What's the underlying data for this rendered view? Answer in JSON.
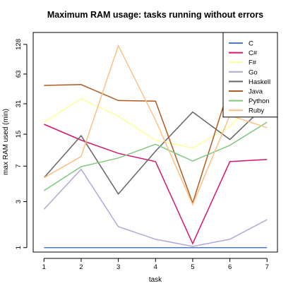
{
  "chart_data": {
    "type": "line",
    "title": "Maximum RAM usage: tasks running without errors",
    "xlabel": "task",
    "ylabel": "max RAM used (min)",
    "y_scale": "log2",
    "x": [
      1,
      2,
      3,
      4,
      5,
      6,
      7
    ],
    "x_tick_labels": [
      "1",
      "2",
      "3",
      "4",
      "5",
      "6",
      "7"
    ],
    "y_ticks": [
      1,
      3,
      7,
      15,
      31,
      63,
      128
    ],
    "y_tick_labels": [
      "1",
      "3",
      "7",
      "15",
      "31",
      "63",
      "128"
    ],
    "ylim": [
      0.9,
      170
    ],
    "legend_position": "top-right",
    "series": [
      {
        "name": "C",
        "color": "#4e7cbf",
        "values": [
          1,
          1,
          1,
          1,
          1,
          1,
          1
        ]
      },
      {
        "name": "C#",
        "color": "#d6166f",
        "values": [
          19,
          13,
          9.5,
          7.8,
          1.1,
          7.8,
          8.2
        ]
      },
      {
        "name": "F#",
        "color": "#ffff99",
        "values": [
          20,
          35,
          23,
          13,
          10.8,
          18,
          45
        ]
      },
      {
        "name": "Go",
        "color": "#b3a8d4",
        "values": [
          2.5,
          6.5,
          1.65,
          1.22,
          1.03,
          1.22,
          1.95
        ]
      },
      {
        "name": "Haskell",
        "color": "#666666",
        "values": [
          5.3,
          14.5,
          3.6,
          10,
          25.5,
          13.2,
          31
        ]
      },
      {
        "name": "Java",
        "color": "#b35b1e",
        "values": [
          48,
          49,
          33.5,
          33,
          2.9,
          48,
          63
        ]
      },
      {
        "name": "Python",
        "color": "#7fc97f",
        "values": [
          3.9,
          6.9,
          8.5,
          11.8,
          7.9,
          11.5,
          20
        ]
      },
      {
        "name": "Ruby",
        "color": "#fdc086",
        "values": [
          5.3,
          8.8,
          124,
          21,
          2.8,
          23.5,
          17.5
        ]
      }
    ]
  }
}
